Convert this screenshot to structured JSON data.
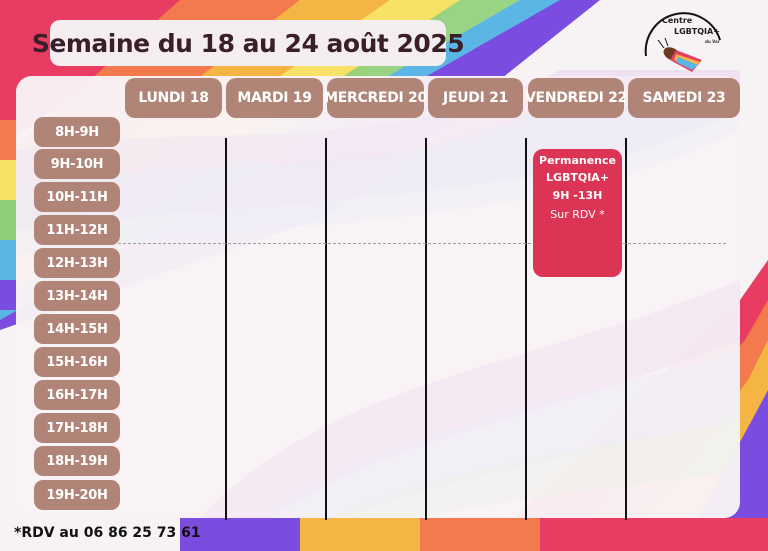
{
  "header": {
    "title": "Semaine du 18 au 24 août 2025"
  },
  "logo": {
    "line1": "Centre",
    "line2": "LGBTQIA+",
    "line3": "du Var",
    "icon": "cicada-icon"
  },
  "days": [
    {
      "label": "LUNDI 18"
    },
    {
      "label": "MARDI 19"
    },
    {
      "label": "MERCREDI 20"
    },
    {
      "label": "JEUDI 21"
    },
    {
      "label": "VENDREDI 22"
    },
    {
      "label": "SAMEDI 23"
    }
  ],
  "slots": [
    {
      "label": "8H-9H"
    },
    {
      "label": "9H-10H"
    },
    {
      "label": "10H-11H"
    },
    {
      "label": "11H-12H"
    },
    {
      "label": "12H-13H"
    },
    {
      "label": "13H-14H"
    },
    {
      "label": "14H-15H"
    },
    {
      "label": "15H-16H"
    },
    {
      "label": "16H-17H"
    },
    {
      "label": "17H-18H"
    },
    {
      "label": "18H-19H"
    },
    {
      "label": "19H-20H"
    }
  ],
  "event": {
    "title": "Permanence",
    "subtitle": "LGBTQIA+",
    "time": "9H -13H",
    "note": "Sur RDV *",
    "color": "#db3454"
  },
  "footnote": "*RDV au 06 86 25 73 61",
  "colors": {
    "chip": "#b08577",
    "event": "#db3454"
  }
}
